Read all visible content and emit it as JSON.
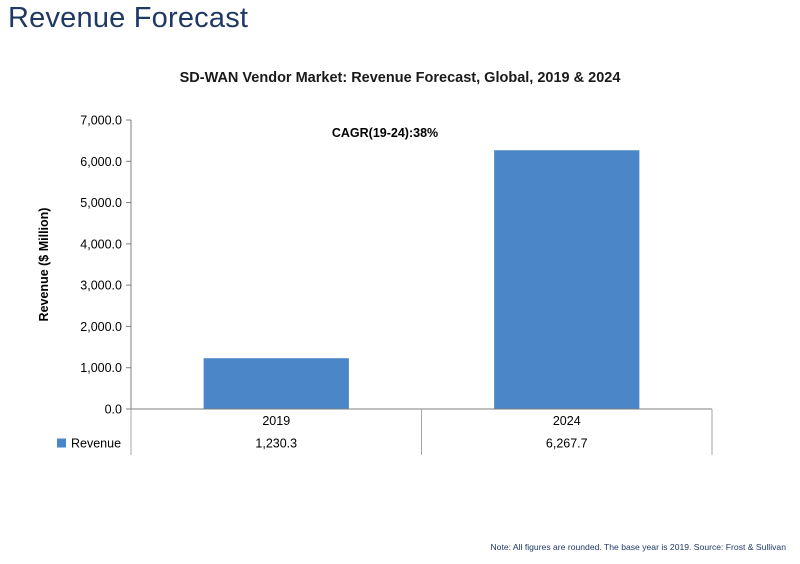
{
  "slide": {
    "title": "Revenue Forecast",
    "footnote": "Note: All figures are rounded. The base year is 2019. Source: Frost & Sullivan"
  },
  "chart_data": {
    "type": "bar",
    "title": "SD-WAN Vendor Market: Revenue Forecast, Global, 2019 & 2024",
    "xlabel": "",
    "ylabel": "Revenue ($ Million)",
    "categories": [
      "2019",
      "2024"
    ],
    "series": [
      {
        "name": "Revenue",
        "values": [
          1230.3,
          6267.7
        ],
        "color": "#4a86c8"
      }
    ],
    "data_table": {
      "legend_label": "Revenue",
      "values": [
        "1,230.3",
        "6,267.7"
      ]
    },
    "ylim": [
      0,
      7000
    ],
    "yticks": [
      0,
      1000,
      2000,
      3000,
      4000,
      5000,
      6000,
      7000
    ],
    "ytick_labels": [
      "0.0",
      "1,000.0",
      "2,000.0",
      "3,000.0",
      "4,000.0",
      "5,000.0",
      "6,000.0",
      "7,000.0"
    ],
    "annotation": "CAGR(19-24):38%",
    "grid": false,
    "legend": "data-table"
  }
}
